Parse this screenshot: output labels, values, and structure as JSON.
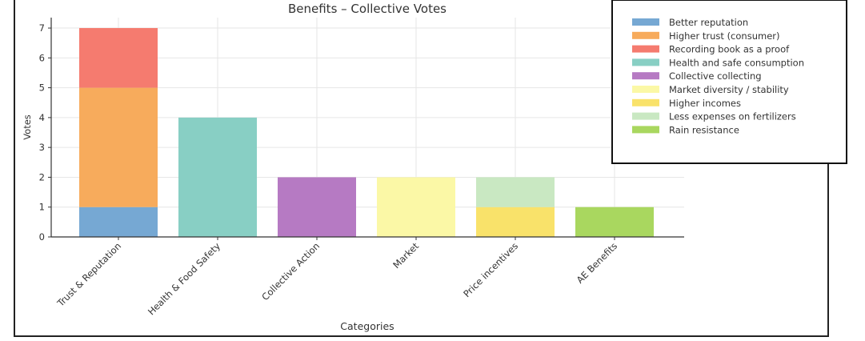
{
  "chart_data": {
    "type": "bar",
    "stacked": true,
    "title": "Benefits – Collective Votes",
    "xlabel": "Categories",
    "ylabel": "Votes",
    "ylim": [
      0,
      7.35
    ],
    "yticks": [
      0,
      1,
      2,
      3,
      4,
      5,
      6,
      7
    ],
    "grid": true,
    "legend_position": "top-right",
    "categories": [
      "Trust & Reputation",
      "Health & Food Safety",
      "Collective Action",
      "Market",
      "Price incentives",
      "AE Benefits"
    ],
    "series": [
      {
        "name": "Better reputation",
        "color": "#76a8d3",
        "values": [
          1,
          0,
          0,
          0,
          0,
          0
        ]
      },
      {
        "name": "Higher trust (consumer)",
        "color": "#f7ab5c",
        "values": [
          4,
          0,
          0,
          0,
          0,
          0
        ]
      },
      {
        "name": "Recording book as a proof",
        "color": "#f57b6f",
        "values": [
          2,
          0,
          0,
          0,
          0,
          0
        ]
      },
      {
        "name": "Health and safe consumption",
        "color": "#88cfc4",
        "values": [
          0,
          4,
          0,
          0,
          0,
          0
        ]
      },
      {
        "name": "Collective collecting",
        "color": "#b67ac3",
        "values": [
          0,
          0,
          2,
          0,
          0,
          0
        ]
      },
      {
        "name": "Market diversity / stability",
        "color": "#fbf8a6",
        "values": [
          0,
          0,
          0,
          2,
          0,
          0
        ]
      },
      {
        "name": "Higher incomes",
        "color": "#f9e26a",
        "values": [
          0,
          0,
          0,
          0,
          1,
          0
        ]
      },
      {
        "name": "Less expenses on fertilizers",
        "color": "#c9e8c2",
        "values": [
          0,
          0,
          0,
          0,
          1,
          0
        ]
      },
      {
        "name": "Rain resistance",
        "color": "#a9d75f",
        "values": [
          0,
          0,
          0,
          0,
          0,
          1
        ]
      }
    ]
  }
}
